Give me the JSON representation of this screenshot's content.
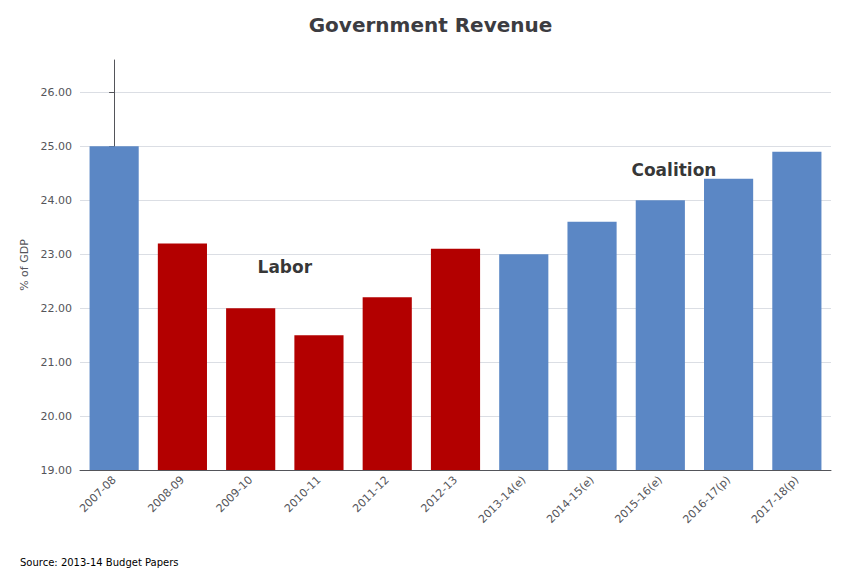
{
  "chart_data": {
    "type": "bar",
    "title": "Government Revenue",
    "ylabel": "% of GDP",
    "categories": [
      "2007-08",
      "2008-09",
      "2009-10",
      "2010-11",
      "2011-12",
      "2012-13",
      "2013-14(e)",
      "2014-15(e)",
      "2015-16(e)",
      "2016-17(p)",
      "2017-18(p)"
    ],
    "values": [
      25.0,
      23.2,
      22.0,
      21.5,
      22.2,
      23.1,
      23.0,
      23.6,
      24.0,
      24.4,
      24.9
    ],
    "colors": [
      "#5b87c5",
      "#b30000",
      "#b30000",
      "#b30000",
      "#b30000",
      "#b30000",
      "#5b87c5",
      "#5b87c5",
      "#5b87c5",
      "#5b87c5",
      "#5b87c5"
    ],
    "ylim": [
      19.0,
      26.6
    ],
    "yticks": [
      {
        "value": 19.0,
        "label": "19.00"
      },
      {
        "value": 20.0,
        "label": "20.00"
      },
      {
        "value": 21.0,
        "label": "21.00"
      },
      {
        "value": 22.0,
        "label": "22.00"
      },
      {
        "value": 23.0,
        "label": "23.00"
      },
      {
        "value": 24.0,
        "label": "24.00"
      },
      {
        "value": 25.0,
        "label": "25.00"
      },
      {
        "value": 26.0,
        "label": "26.00"
      }
    ],
    "grid": true,
    "annotations": [
      {
        "text": "Labor",
        "x": 2.5,
        "y": 22.6
      },
      {
        "text": "Coalition",
        "x": 8.2,
        "y": 24.4
      }
    ],
    "source": "Source: 2013-14 Budget Papers"
  }
}
